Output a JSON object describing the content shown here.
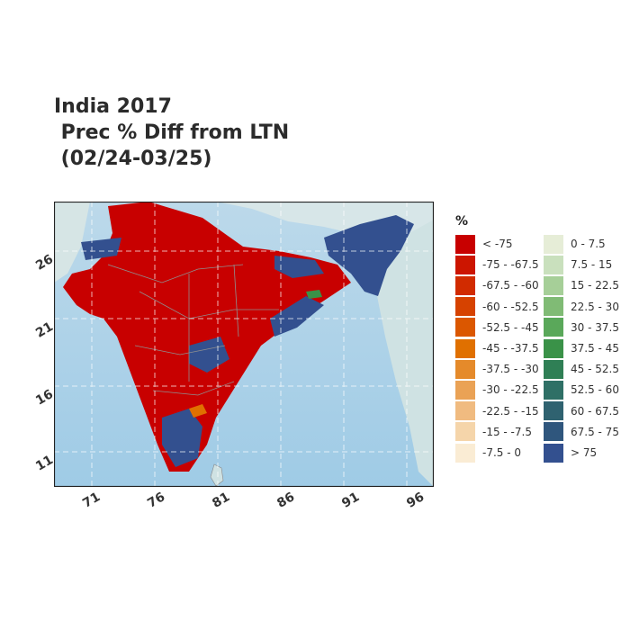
{
  "title": "India 2017\n Prec % Diff from LTN\n (02/24-03/25)",
  "map": {
    "y_ticks": [
      "26",
      "21",
      "16",
      "11"
    ],
    "x_ticks": [
      "71",
      "76",
      "81",
      "86",
      "91",
      "96"
    ]
  },
  "legend": {
    "title": "%",
    "items_left": [
      {
        "label": "< -75",
        "color": "#c80000"
      },
      {
        "label": "-75 - -67.5",
        "color": "#cc1500"
      },
      {
        "label": "-67.5 - -60",
        "color": "#d12b00"
      },
      {
        "label": "-60 - -52.5",
        "color": "#d64200"
      },
      {
        "label": "-52.5 - -45",
        "color": "#db5700"
      },
      {
        "label": "-45 - -37.5",
        "color": "#e07000"
      },
      {
        "label": "-37.5 - -30",
        "color": "#e58a2a"
      },
      {
        "label": "-30 - -22.5",
        "color": "#eaa255"
      },
      {
        "label": "-22.5 - -15",
        "color": "#f0bb80"
      },
      {
        "label": "-15 - -7.5",
        "color": "#f5d5aa"
      },
      {
        "label": "-7.5 - 0",
        "color": "#faecd4"
      }
    ],
    "items_right": [
      {
        "label": "0 - 7.5",
        "color": "#e6edd7"
      },
      {
        "label": "7.5 - 15",
        "color": "#c9e0bd"
      },
      {
        "label": "15 - 22.5",
        "color": "#a6cf98"
      },
      {
        "label": "22.5 - 30",
        "color": "#80bb75"
      },
      {
        "label": "30 - 37.5",
        "color": "#5aa85a"
      },
      {
        "label": "37.5 - 45",
        "color": "#3a9248"
      },
      {
        "label": "45 - 52.5",
        "color": "#2f7f55"
      },
      {
        "label": "52.5 - 60",
        "color": "#2f7066"
      },
      {
        "label": "60 - 67.5",
        "color": "#2f6270"
      },
      {
        "label": "67.5 - 75",
        "color": "#2f567d"
      },
      {
        "label": "> 75",
        "color": "#33508f"
      }
    ]
  }
}
